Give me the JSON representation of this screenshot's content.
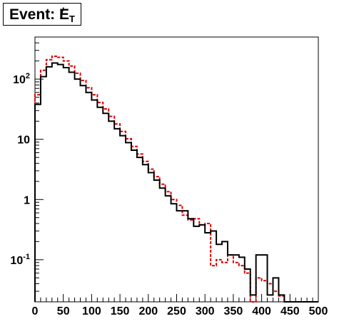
{
  "title": {
    "prefix": "Event: ",
    "symbol": "E",
    "slash": "/",
    "subscript": "T"
  },
  "chart_data": {
    "type": "histogram",
    "x": [
      0,
      10,
      20,
      30,
      40,
      50,
      60,
      70,
      80,
      90,
      100,
      110,
      120,
      130,
      140,
      150,
      160,
      170,
      180,
      190,
      200,
      210,
      220,
      230,
      240,
      250,
      260,
      270,
      280,
      290,
      300,
      310,
      320,
      330,
      340,
      350,
      360,
      370,
      380,
      390,
      400,
      410,
      420,
      430,
      440,
      450,
      460,
      470,
      480,
      490
    ],
    "xlim": [
      0,
      500
    ],
    "ylog": true,
    "ylim": [
      0.02,
      500
    ],
    "x_ticks": [
      "0",
      "50",
      "100",
      "150",
      "200",
      "250",
      "300",
      "350",
      "400",
      "450",
      "500"
    ],
    "y_ticks": [
      {
        "base": "10",
        "exp": "2",
        "value": 100
      },
      {
        "base": "10",
        "exp": "",
        "value": 10
      },
      {
        "base": "1",
        "exp": "",
        "value": 1
      },
      {
        "base": "10",
        "exp": "-1",
        "value": 0.1
      }
    ],
    "series": [
      {
        "color": "#000000",
        "style": "solid",
        "values": [
          38,
          110,
          160,
          185,
          175,
          155,
          130,
          100,
          78,
          60,
          45,
          34,
          27,
          20,
          15,
          11.5,
          8.8,
          6.6,
          5,
          3.8,
          2.8,
          2.1,
          1.55,
          1.15,
          0.85,
          0.65,
          0.65,
          0.48,
          0.36,
          0.38,
          0.28,
          0.3,
          0.18,
          0.2,
          0.12,
          0.12,
          0.11,
          0.07,
          0.026,
          0.12,
          0.12,
          0.026,
          0.05,
          0.026,
          0,
          0,
          0,
          0,
          0,
          0
        ]
      },
      {
        "color": "#dd0000",
        "style": "dashed",
        "values": [
          55,
          140,
          210,
          240,
          230,
          200,
          165,
          125,
          95,
          72,
          55,
          41,
          32,
          24,
          18,
          13.5,
          10.2,
          7.6,
          5.7,
          4.3,
          3.2,
          2.4,
          1.8,
          1.35,
          1,
          0.8,
          0.55,
          0.46,
          0.48,
          0.38,
          0.4,
          0.08,
          0.1,
          0.09,
          0.12,
          0.09,
          0.08,
          0.06,
          0.02,
          0.05,
          0.045,
          0.04,
          0.03,
          0.025,
          0.02,
          0,
          0,
          0,
          0,
          0
        ]
      }
    ]
  }
}
